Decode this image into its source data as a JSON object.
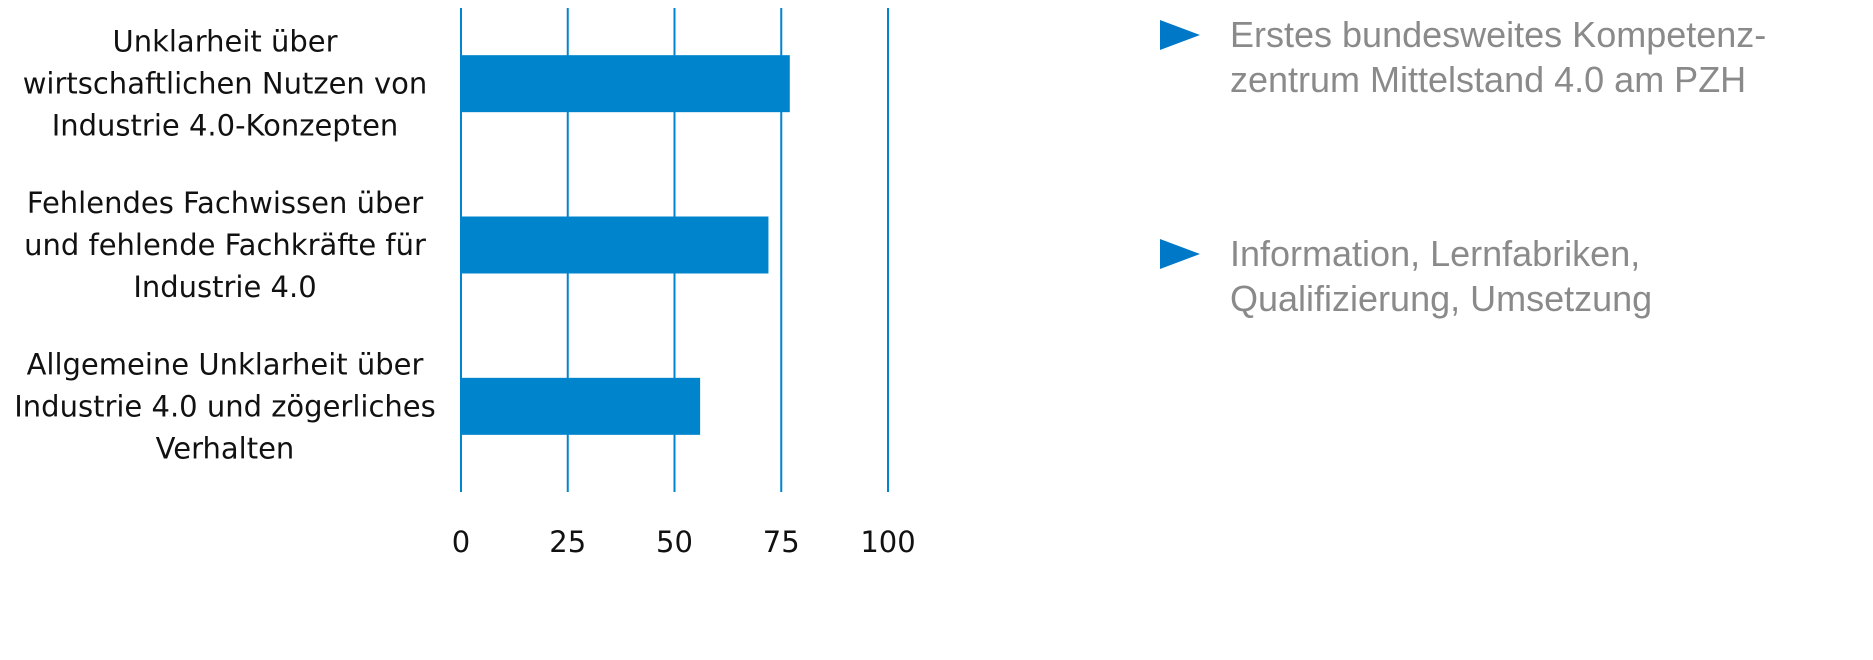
{
  "chart_data": {
    "type": "bar",
    "orientation": "horizontal",
    "categories": [
      "Unklarheit über\nwirtschaftlichen Nutzen von\nIndustrie 4.0-Konzepten",
      "Fehlendes Fachwissen über\nund fehlende Fachkräfte für\nIndustrie 4.0",
      "Allgemeine Unklarheit über\nIndustrie 4.0 und zögerliches\nVerhalten"
    ],
    "values": [
      77,
      72,
      56
    ],
    "xlim": [
      0,
      100
    ],
    "x_ticks": [
      "0",
      "25",
      "50",
      "75",
      "100"
    ],
    "grid": true,
    "bar_color": "#0085cc",
    "grid_color": "#0085cc",
    "title": "",
    "xlabel": "",
    "ylabel": ""
  },
  "bullets": [
    {
      "text": "Erstes bundesweites Kompetenz-\nzentrum Mittelstand 4.0 am PZH"
    },
    {
      "text": "Information, Lernfabriken,\nQualifizierung, Umsetzung"
    }
  ],
  "bullet_color": "#0078c8"
}
